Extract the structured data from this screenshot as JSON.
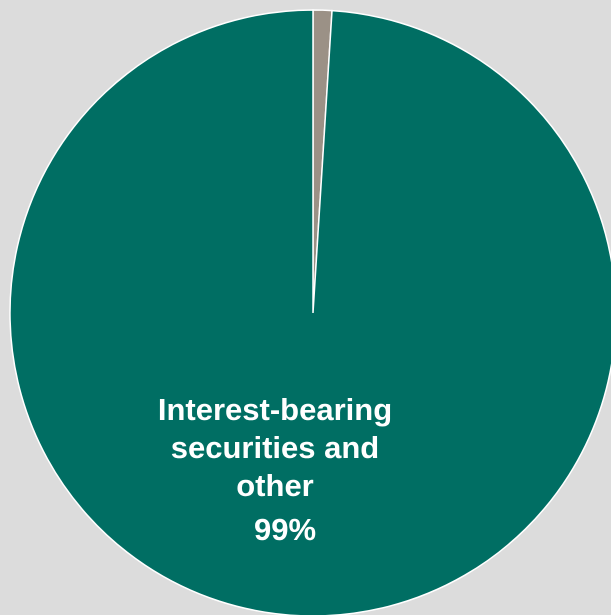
{
  "background_color": "#dcdcdc",
  "chart_data": {
    "type": "pie",
    "title": "",
    "start_angle_deg": 0,
    "direction": "clockwise",
    "slices": [
      {
        "label_lines": [],
        "percent_label": "",
        "value": 1,
        "color": "#9b9186"
      },
      {
        "label_lines": [
          "Interest-bearing",
          "securities and",
          "other"
        ],
        "percent_label": "99%",
        "value": 99,
        "color": "#006e63"
      }
    ],
    "edge_color": "#ffffff"
  }
}
